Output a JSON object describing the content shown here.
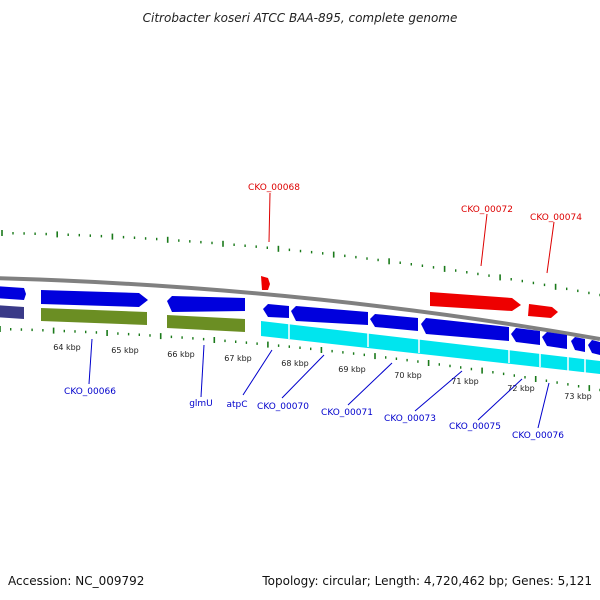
{
  "title": "Citrobacter koseri ATCC BAA-895, complete genome",
  "footer": {
    "accession": "Accession: NC_009792",
    "topology": "Topology: circular; Length: 4,720,462 bp; Genes: 5,121"
  },
  "colors": {
    "backbone": "#808080",
    "forward_gene": "#0000dd",
    "reverse_gene": "#ee0000",
    "gene_blue_dark": "#000099",
    "band_cyan": "#00e5ee",
    "band_olive": "#6b8e23",
    "band_slate": "#3a3a88",
    "tick": "#1a7a1a",
    "label_blue": "#0000cc",
    "label_red": "#dd0000"
  },
  "scale_labels": [
    "64 kbp",
    "65 kbp",
    "66 kbp",
    "67 kbp",
    "68 kbp",
    "69 kbp",
    "70 kbp",
    "71 kbp",
    "72 kbp",
    "73 kbp"
  ],
  "gene_labels_top": [
    "CKO_00068",
    "CKO_00072",
    "CKO_00074"
  ],
  "gene_labels_bottom": [
    "CKO_00066",
    "glmU",
    "atpC",
    "CKO_00070",
    "CKO_00071",
    "CKO_00073",
    "CKO_00075",
    "CKO_00076"
  ]
}
